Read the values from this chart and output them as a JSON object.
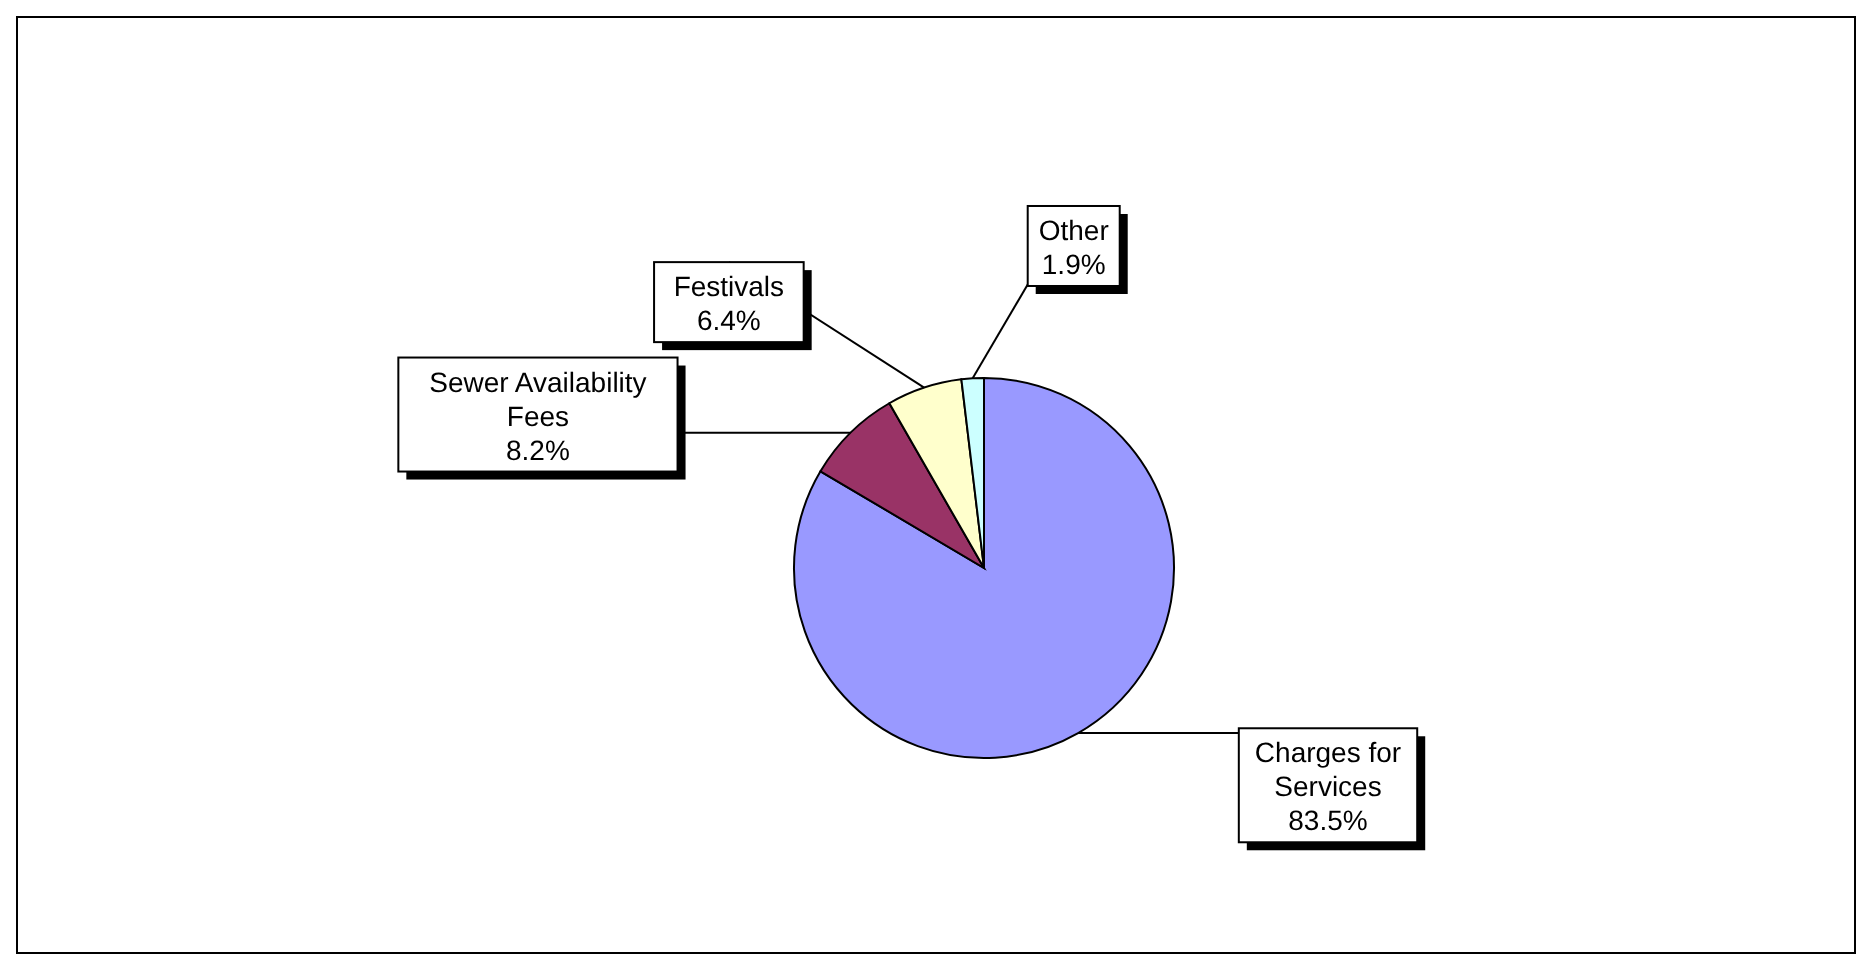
{
  "chart_data": {
    "type": "pie",
    "categories": [
      "Charges for Services",
      "Sewer Availability Fees",
      "Festivals",
      "Other"
    ],
    "values": [
      83.5,
      8.2,
      6.4,
      1.9
    ],
    "value_labels": [
      "83.5%",
      "8.2%",
      "6.4%",
      "1.9%"
    ],
    "colors": [
      "#9999ff",
      "#993366",
      "#ffffcc",
      "#ccffff"
    ],
    "legend": false
  }
}
